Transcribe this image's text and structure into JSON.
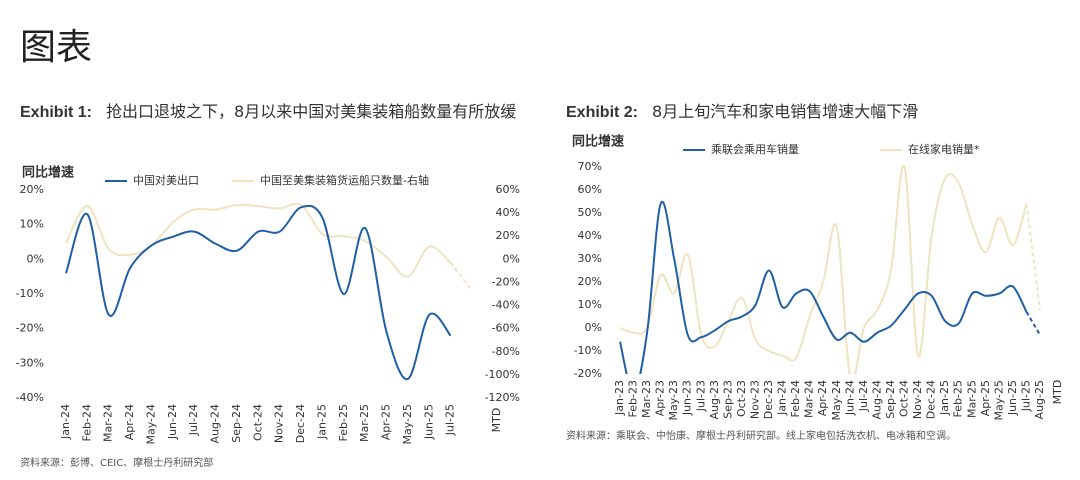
{
  "heading": "图表",
  "chart_data": [
    {
      "type": "line",
      "exhibit": "Exhibit 1:",
      "title": "抢出口退坡之下，8月以来中国对美集装箱船数量有所放缓",
      "y_label": "同比增速",
      "x_note": "MTD",
      "source": "资料来源：彭博、CEIC、摩根士丹利研究部",
      "categories": [
        "Jan-24",
        "Feb-24",
        "Mar-24",
        "Apr-24",
        "May-24",
        "Jun-24",
        "Jul-24",
        "Aug-24",
        "Sep-24",
        "Oct-24",
        "Nov-24",
        "Dec-24",
        "Jan-25",
        "Feb-25",
        "Mar-25",
        "Apr-25",
        "May-25",
        "Jun-25",
        "Jul-25",
        null
      ],
      "series": [
        {
          "name": "中国对美出口",
          "color": "#1f5fa6",
          "values": [
            -4,
            13,
            -16,
            -2.5,
            4,
            6.5,
            8,
            4.5,
            2.5,
            8,
            8,
            15,
            12,
            -10,
            9,
            -21,
            -34.5,
            -16,
            -22,
            null
          ]
        },
        {
          "name": "中国至美集装箱货运船只数量-右轴",
          "color": "#efe3c0",
          "axis": "y2",
          "dash_last": true,
          "values": [
            14,
            46,
            9,
            4,
            12,
            32,
            43,
            43,
            47,
            46,
            44,
            47,
            22,
            20,
            16,
            2,
            -15,
            11,
            -3,
            -27
          ]
        }
      ],
      "ylim": [
        -40,
        20
      ],
      "yticks": [
        {
          "value": 20,
          "label": "20%"
        },
        {
          "value": 10,
          "label": "10%"
        },
        {
          "value": 0,
          "label": "0%"
        },
        {
          "value": -10,
          "label": "-10%"
        },
        {
          "value": -20,
          "label": "-20%"
        },
        {
          "value": -30,
          "label": "-30%"
        },
        {
          "value": -40,
          "label": "-40%"
        }
      ],
      "y2lim": [
        -120,
        60
      ],
      "y2ticks": [
        {
          "value": 60,
          "label": "60%"
        },
        {
          "value": 40,
          "label": "40%"
        },
        {
          "value": 20,
          "label": "20%"
        },
        {
          "value": 0,
          "label": "0%"
        },
        {
          "value": -20,
          "label": "-20%"
        },
        {
          "value": -40,
          "label": "-40%"
        },
        {
          "value": -60,
          "label": "-60%"
        },
        {
          "value": -80,
          "label": "-80%"
        },
        {
          "value": -100,
          "label": "-100%"
        },
        {
          "value": -120,
          "label": "-120%"
        }
      ],
      "grid": false
    },
    {
      "type": "line",
      "exhibit": "Exhibit 2:",
      "title": "8月上旬汽车和家电销售增速大幅下滑",
      "y_label": "同比增速",
      "x_note": "MTD",
      "source": "资料来源：乘联会、中怡康、摩根士丹利研究部。线上家电包括洗衣机、电冰箱和空调。",
      "categories": [
        "Jan-23",
        "Feb-23",
        "Mar-23",
        "Apr-23",
        "May-23",
        "Jun-23",
        "Jul-23",
        "Aug-23",
        "Sep-23",
        "Oct-23",
        "Nov-23",
        "Dec-23",
        "Jan-24",
        "Feb-24",
        "Mar-24",
        "Apr-24",
        "May-24",
        "Jun-24",
        "Jul-24",
        "Aug-24",
        "Sep-24",
        "Oct-24",
        "Nov-24",
        "Dec-24",
        "Jan-25",
        "Feb-25",
        "Mar-25",
        "Apr-25",
        "May-25",
        "Jun-25",
        "Jul-25",
        "Aug-25"
      ],
      "series": [
        {
          "name": "乘联会乘用车销量",
          "color": "#1f5fa6",
          "dash_last": true,
          "values": [
            -6,
            -28,
            -2,
            54,
            30,
            -3,
            -4,
            -1,
            3,
            5,
            10,
            25,
            9,
            15,
            16,
            5,
            -5,
            -2,
            -6,
            -2,
            1,
            8,
            15,
            14,
            3,
            2,
            15,
            14,
            15,
            18,
            7,
            -3
          ]
        },
        {
          "name": "在线家电销量*",
          "color": "#efe3c0",
          "dash_last": true,
          "values": [
            0,
            -2,
            0,
            23,
            15,
            32,
            -3,
            -8,
            3,
            13,
            -5,
            -10,
            -12,
            -13,
            5,
            20,
            44,
            -22,
            0,
            8,
            25,
            70,
            -12,
            40,
            65,
            63,
            45,
            33,
            48,
            36,
            54,
            8
          ]
        }
      ],
      "ylim": [
        -20,
        70
      ],
      "yticks": [
        {
          "value": 70,
          "label": "70%"
        },
        {
          "value": 60,
          "label": "60%"
        },
        {
          "value": 50,
          "label": "50%"
        },
        {
          "value": 40,
          "label": "40%"
        },
        {
          "value": 30,
          "label": "30%"
        },
        {
          "value": 20,
          "label": "20%"
        },
        {
          "value": 10,
          "label": "10%"
        },
        {
          "value": 0,
          "label": "0%"
        },
        {
          "value": -10,
          "label": "-10%"
        },
        {
          "value": -20,
          "label": "-20%"
        }
      ],
      "grid": false
    }
  ]
}
